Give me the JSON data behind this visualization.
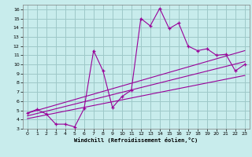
{
  "background_color": "#c8ecec",
  "grid_color": "#9ec8c8",
  "line_color": "#990099",
  "marker_color": "#990099",
  "xlabel": "Windchill (Refroidissement éolien,°C)",
  "xlim": [
    -0.5,
    23.5
  ],
  "ylim": [
    3,
    16.5
  ],
  "xticks": [
    0,
    1,
    2,
    3,
    4,
    5,
    6,
    7,
    8,
    9,
    10,
    11,
    12,
    13,
    14,
    15,
    16,
    17,
    18,
    19,
    20,
    21,
    22,
    23
  ],
  "yticks": [
    3,
    4,
    5,
    6,
    7,
    8,
    9,
    10,
    11,
    12,
    13,
    14,
    15,
    16
  ],
  "line1_x": [
    0,
    1,
    2,
    3,
    4,
    5,
    6,
    7,
    8,
    9,
    10,
    11,
    12,
    13,
    14,
    15,
    16,
    17,
    18,
    19,
    20,
    21,
    22,
    23
  ],
  "line1_y": [
    4.7,
    5.1,
    4.6,
    3.5,
    3.5,
    3.2,
    5.2,
    11.5,
    9.3,
    5.3,
    6.5,
    7.2,
    15.0,
    14.2,
    16.1,
    13.9,
    14.5,
    12.0,
    11.5,
    11.7,
    11.0,
    11.1,
    9.3,
    10.0
  ],
  "line2_x": [
    0,
    23
  ],
  "line2_y": [
    4.7,
    11.5
  ],
  "line3_x": [
    0,
    23
  ],
  "line3_y": [
    4.4,
    10.3
  ],
  "line4_x": [
    0,
    23
  ],
  "line4_y": [
    4.1,
    8.8
  ]
}
